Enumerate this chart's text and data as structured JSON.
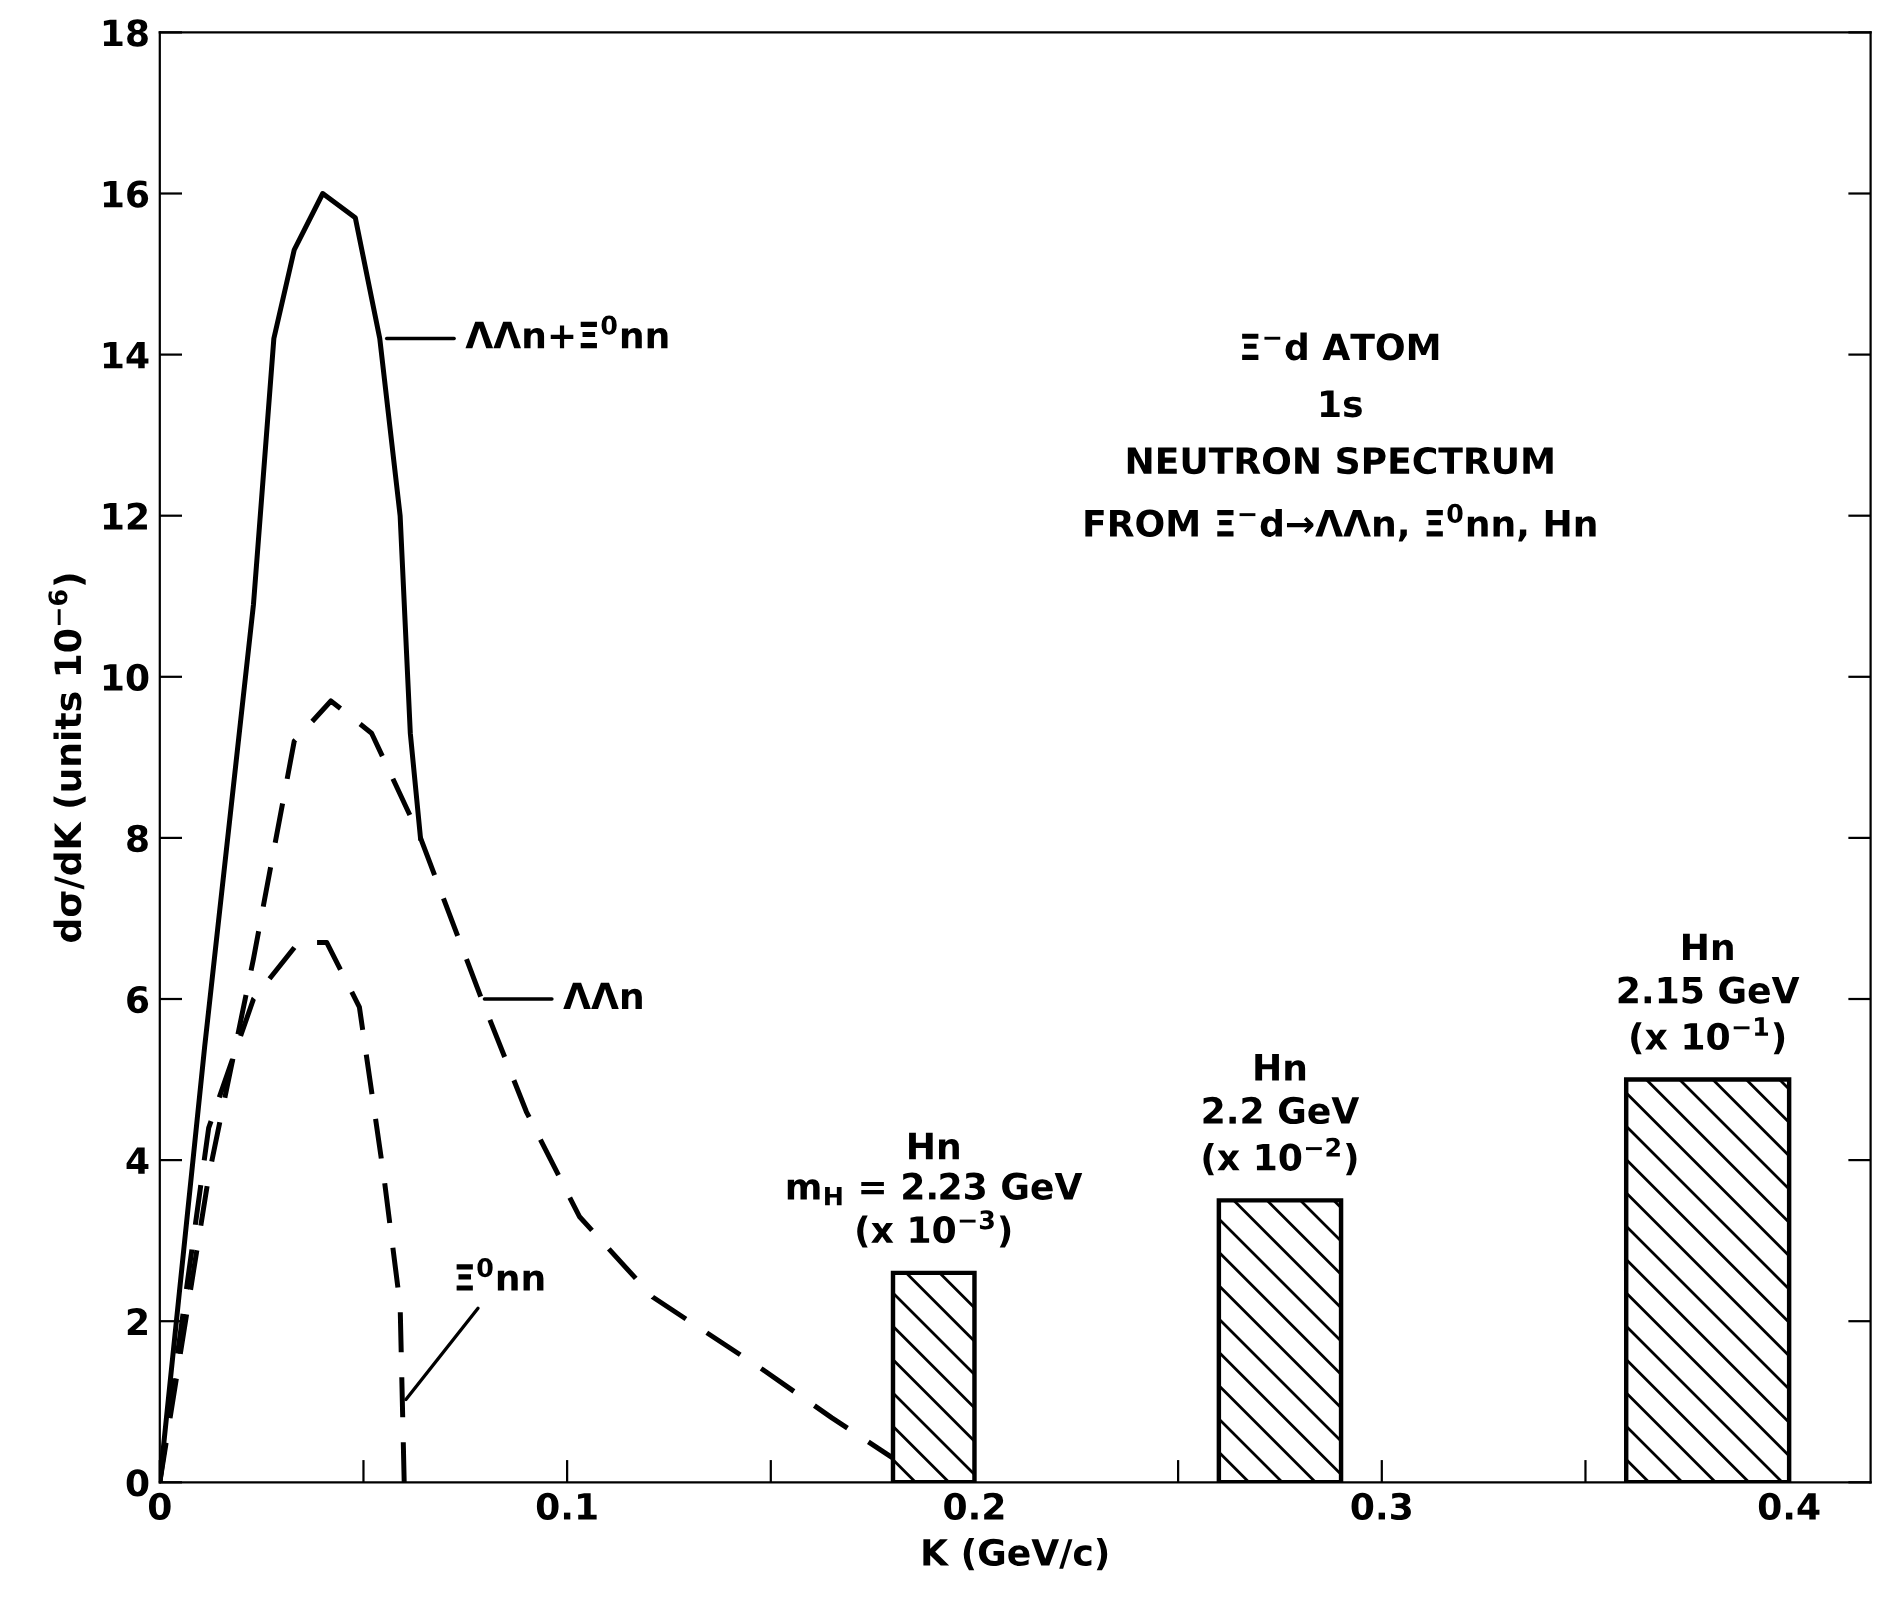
{
  "chart_data": {
    "type": "line",
    "xlabel": "K (GeV/c)",
    "ylabel": "dσ/dK (units 10$^{−6}$)",
    "xlim": [
      0,
      0.42
    ],
    "ylim": [
      0,
      18
    ],
    "xticks": [
      0,
      {
        "value": 0.05,
        "label": null
      },
      0.1,
      {
        "value": 0.15,
        "label": null
      },
      0.2,
      {
        "value": 0.25,
        "label": null
      },
      0.3,
      {
        "value": 0.35,
        "label": null
      },
      0.4
    ],
    "yticks": [
      0,
      2,
      4,
      6,
      8,
      10,
      12,
      14,
      16,
      18
    ],
    "grid": false,
    "legend": false,
    "series": [
      {
        "type": "line",
        "line_style": "solid",
        "color": "#000000",
        "x": [
          0,
          0.011,
          0.023,
          0.028,
          0.033,
          0.04,
          0.048,
          0.054,
          0.059,
          0.0615,
          0.064
        ],
        "values": [
          0,
          5.4,
          10.9,
          14.2,
          15.3,
          16,
          15.7,
          14.2,
          12.0,
          9.3,
          8.0
        ]
      },
      {
        "type": "line",
        "line_style": "dashed",
        "color": "#000000",
        "x": [
          0,
          0.012,
          0.023,
          0.033,
          0.042,
          0.052,
          0.064,
          0.079,
          0.09,
          0.103,
          0.121,
          0.148,
          0.165,
          0.18
        ],
        "values": [
          0,
          3.8,
          6.5,
          9.2,
          9.7,
          9.3,
          8.0,
          6.0,
          4.6,
          3.3,
          2.3,
          1.4,
          0.8,
          0.3
        ]
      },
      {
        "type": "line",
        "line_style": "dashed",
        "color": "#000000",
        "x": [
          0,
          0.012,
          0.023,
          0.034,
          0.041,
          0.049,
          0.055,
          0.059,
          0.06
        ],
        "values": [
          0,
          4.4,
          6.0,
          6.7,
          6.7,
          5.9,
          3.8,
          2.2,
          0
        ]
      },
      {
        "type": "area",
        "color": "#000000",
        "x": [
          0.18,
          0.18,
          0.2,
          0.2
        ],
        "values": [
          0,
          2.6,
          2.6,
          0
        ]
      },
      {
        "type": "area",
        "color": "#000000",
        "x": [
          0.26,
          0.26,
          0.29,
          0.29
        ],
        "values": [
          0,
          3.5,
          3.5,
          0
        ]
      },
      {
        "type": "area",
        "color": "#000000",
        "x": [
          0.36,
          0.36,
          0.4,
          0.4
        ],
        "values": [
          0,
          5.0,
          5.0,
          0
        ]
      }
    ],
    "annotations": [
      "Ξ$^{−}$d ATOM\n1s\nNEUTRON SPECTRUM\nFROM Ξ$^{−}$d→ΛΛn, Ξ$^{0}$nn, Hn",
      {
        "text": "ΛΛn+Ξ$^{0}$nn",
        "x": 0.055,
        "y": 14.2
      },
      {
        "text": "ΛΛn",
        "x": 0.079,
        "y": 6.0
      },
      {
        "text": "Ξ$^{0}$nn",
        "x": 0.06,
        "y": 1.0
      },
      {
        "text": "(x 10$^{−3}$)",
        "x": 0.19,
        "y": 2.6
      },
      "m$_{H}$ = 2.23 GeV",
      "Hn",
      {
        "text": "Hn\n2.2 GeV\n(x 10$^{−2}$)",
        "x": 0.275,
        "y": 3.5
      },
      {
        "text": "Hn\n2.15 GeV\n(x 10$^{−1}$)",
        "x": 0.38,
        "y": 5.0
      }
    ]
  }
}
